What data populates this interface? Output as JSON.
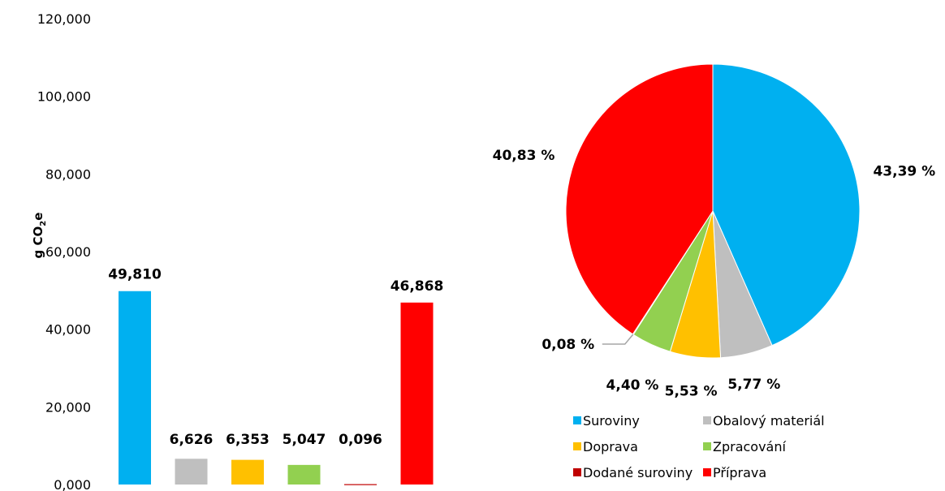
{
  "colors": {
    "suroviny": "#00B0F0",
    "obalovy": "#BFBFBF",
    "doprava": "#FFC000",
    "zpracovani": "#92D050",
    "dodane": "#C00000",
    "priprava": "#FF0000",
    "leader": "#A6A6A6"
  },
  "chart_data": [
    {
      "type": "bar",
      "title": "",
      "xlabel": "",
      "ylabel": "g CO2e",
      "ylabel_main": "g CO",
      "ylabel_sub": "2",
      "ylabel_end": "e",
      "ylim": [
        0,
        120
      ],
      "yticks": [
        {
          "value": 0,
          "label": "0,000"
        },
        {
          "value": 20,
          "label": "20,000"
        },
        {
          "value": 40,
          "label": "40,000"
        },
        {
          "value": 60,
          "label": "60,000"
        },
        {
          "value": 80,
          "label": "80,000"
        },
        {
          "value": 100,
          "label": "100,000"
        },
        {
          "value": 120,
          "label": "120,000"
        }
      ],
      "categories": [
        "Suroviny",
        "Obalový materiál",
        "Doprava",
        "Zpracování",
        "Dodané suroviny",
        "Příprava"
      ],
      "values": [
        49.81,
        6.626,
        6.353,
        5.047,
        0.096,
        46.868
      ],
      "value_labels": [
        "49,810",
        "6,626",
        "6,353",
        "5,047",
        "0,096",
        "46,868"
      ],
      "color_keys": [
        "suroviny",
        "obalovy",
        "doprava",
        "zpracovani",
        "dodane",
        "priprava"
      ],
      "grid": false
    },
    {
      "type": "pie",
      "title": "",
      "start_angle_deg": 0,
      "direction": "clockwise",
      "categories": [
        "Suroviny",
        "Obalový materiál",
        "Doprava",
        "Zpracování",
        "Dodané suroviny",
        "Příprava"
      ],
      "values": [
        43.39,
        5.77,
        5.53,
        4.4,
        0.08,
        40.83
      ],
      "value_labels": [
        "43,39 %",
        "5,77 %",
        "5,53 %",
        "4,40 %",
        "0,08 %",
        "40,83 %"
      ],
      "color_keys": [
        "suroviny",
        "obalovy",
        "doprava",
        "zpracovani",
        "dodane",
        "priprava"
      ],
      "legend": {
        "placement": "bottom",
        "items": [
          {
            "label": "Suroviny",
            "color_key": "suroviny"
          },
          {
            "label": "Obalový materiál",
            "color_key": "obalovy"
          },
          {
            "label": "Doprava",
            "color_key": "doprava"
          },
          {
            "label": "Zpracování",
            "color_key": "zpracovani"
          },
          {
            "label": "Dodané suroviny",
            "color_key": "dodane"
          },
          {
            "label": "Příprava",
            "color_key": "priprava"
          }
        ]
      }
    }
  ]
}
